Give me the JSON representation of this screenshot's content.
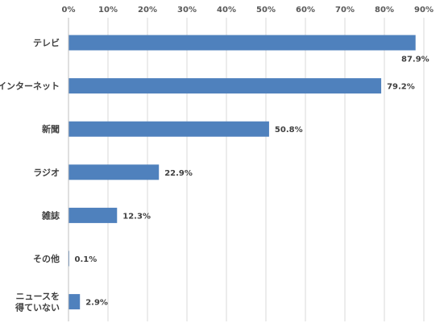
{
  "chart_data": {
    "type": "bar",
    "orientation": "horizontal",
    "title": "",
    "xlabel": "",
    "ylabel": "",
    "xlim": [
      0,
      90
    ],
    "x_ticks": [
      0,
      10,
      20,
      30,
      40,
      50,
      60,
      70,
      80,
      90
    ],
    "x_tick_labels": [
      "0%",
      "10%",
      "20%",
      "30%",
      "40%",
      "50%",
      "60%",
      "70%",
      "80%",
      "90%"
    ],
    "x_axis_position": "top",
    "grid": true,
    "legend": "none",
    "categories": [
      [
        "テレビ"
      ],
      [
        "インターネット"
      ],
      [
        "新聞"
      ],
      [
        "ラジオ"
      ],
      [
        "雑誌"
      ],
      [
        "その他"
      ],
      [
        "ニュースを",
        "得ていない"
      ]
    ],
    "values": [
      87.9,
      79.2,
      50.8,
      22.9,
      12.3,
      0.1,
      2.9
    ],
    "data_labels": [
      "87.9%",
      "79.2%",
      "50.8%",
      "22.9%",
      "12.3%",
      "0.1%",
      "2.9%"
    ],
    "bar_color": "#4f81bd",
    "gridline_color": "#d9d9d9"
  }
}
